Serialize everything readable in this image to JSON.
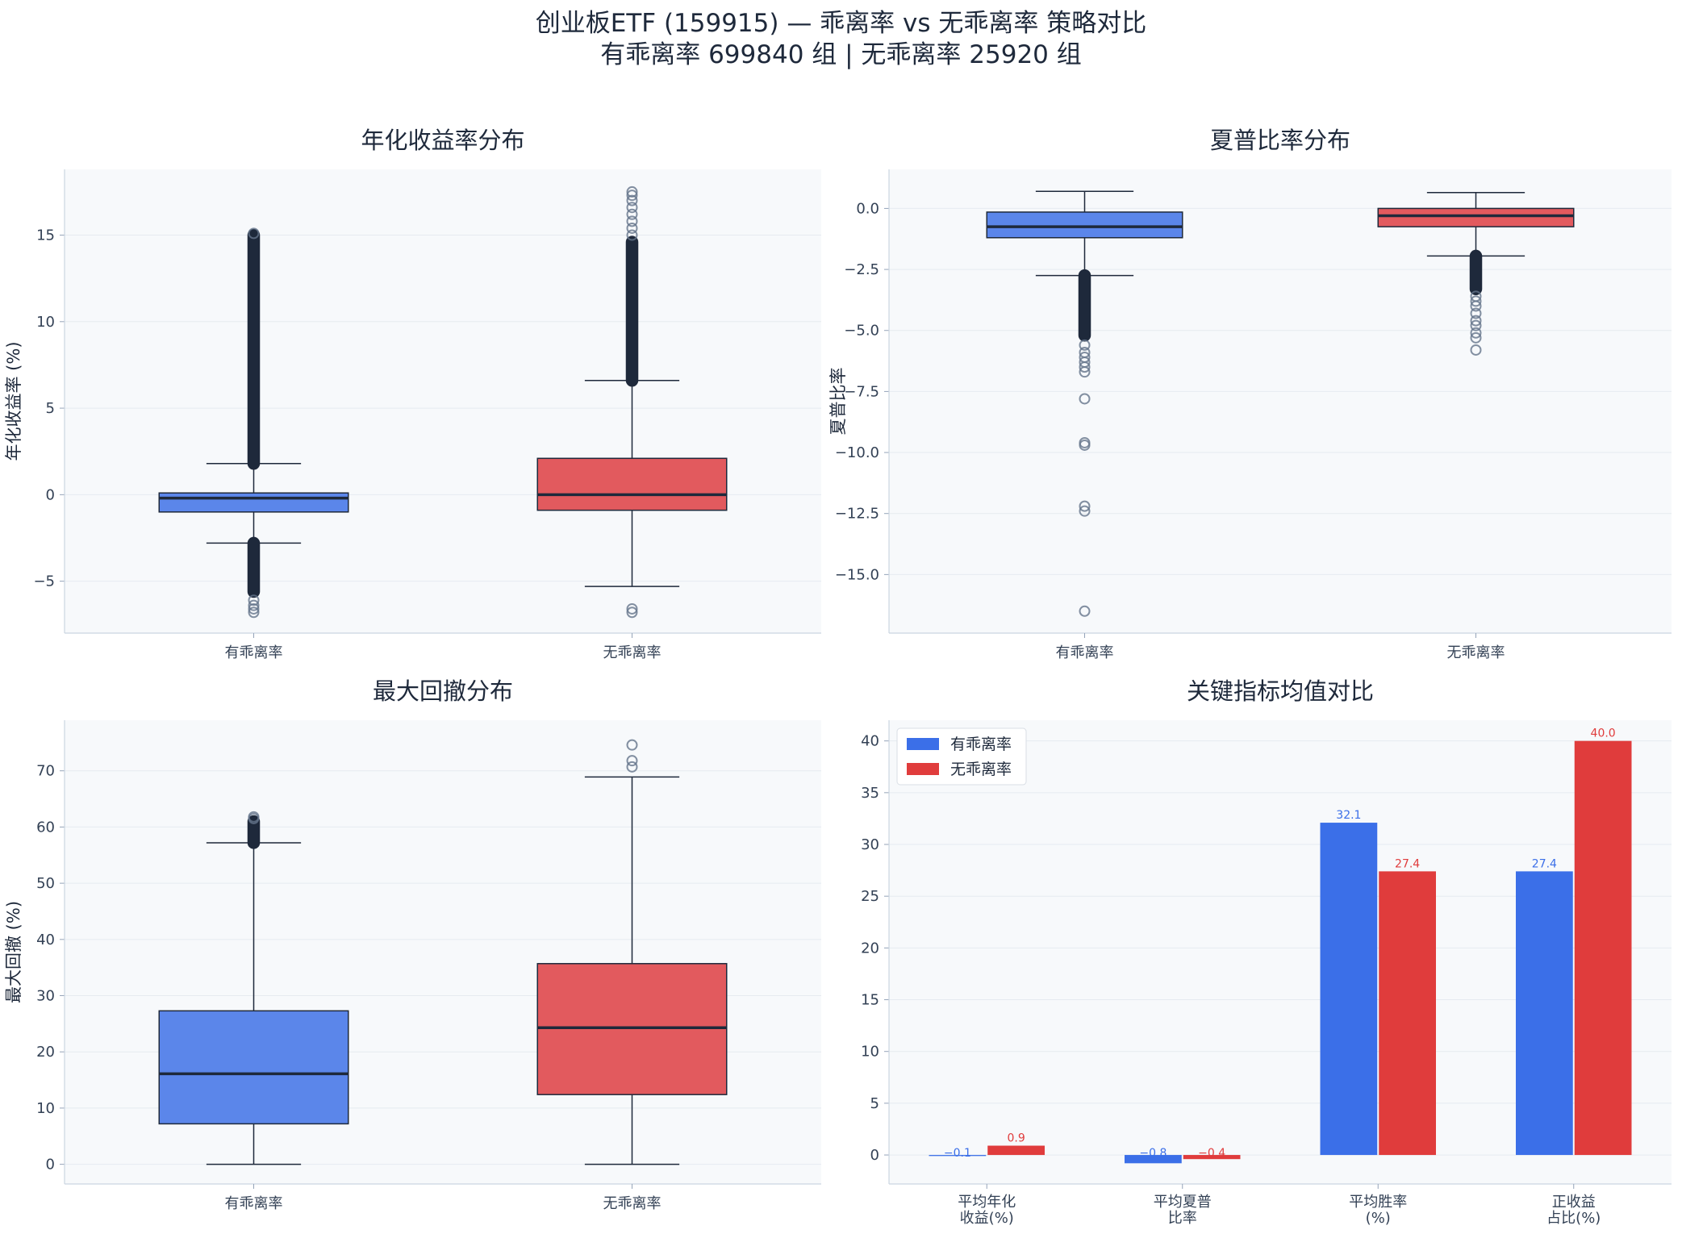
{
  "figure": {
    "title_line1": "创业板ETF (159915) — 乖离率 vs 无乖离率 策略对比",
    "title_line2": "有乖离率 699840 组  |  无乖离率 25920 组"
  },
  "colors": {
    "with_bias": "#3b6fe8",
    "no_bias": "#e03c3c",
    "box_edge": "#1e293b",
    "panel_bg": "#f7f9fb"
  },
  "chart_data": [
    {
      "type": "box",
      "title": "年化收益率分布",
      "ylabel": "年化收益率 (%)",
      "categories": [
        "有乖离率",
        "无乖离率"
      ],
      "ylim": [
        -8,
        18.8
      ],
      "yticks": [
        -5,
        0,
        5,
        10,
        15
      ],
      "grid": true,
      "boxes": [
        {
          "name": "有乖离率",
          "whisker_low": -2.8,
          "q1": -1.0,
          "median": -0.2,
          "q3": 0.1,
          "whisker_high": 1.8,
          "outlier_ranges": [
            [
              1.8,
              15.0
            ],
            [
              -5.6,
              -2.8
            ]
          ],
          "outliers": [
            15.1,
            -6.1,
            -6.4,
            -6.6,
            -6.8
          ]
        },
        {
          "name": "无乖离率",
          "whisker_low": -5.3,
          "q1": -0.9,
          "median": 0.0,
          "q3": 2.1,
          "whisker_high": 6.6,
          "outlier_ranges": [
            [
              6.6,
              14.6
            ]
          ],
          "outliers": [
            15.0,
            15.4,
            15.8,
            16.2,
            16.6,
            17.0,
            17.3,
            17.5,
            -6.6,
            -6.8
          ]
        }
      ]
    },
    {
      "type": "box",
      "title": "夏普比率分布",
      "ylabel": "夏普比率",
      "categories": [
        "有乖离率",
        "无乖离率"
      ],
      "ylim": [
        -17.4,
        1.6
      ],
      "yticks": [
        0.0,
        -2.5,
        -5.0,
        -7.5,
        -10.0,
        -12.5,
        -15.0
      ],
      "ytick_labels": [
        "0.0",
        "−2.5",
        "−5.0",
        "−7.5",
        "−10.0",
        "−12.5",
        "−15.0"
      ],
      "grid": true,
      "boxes": [
        {
          "name": "有乖离率",
          "whisker_low": -2.75,
          "q1": -1.2,
          "median": -0.75,
          "q3": -0.15,
          "whisker_high": 0.7,
          "outlier_ranges": [
            [
              -5.2,
              -2.75
            ]
          ],
          "outliers": [
            -5.6,
            -5.9,
            -6.1,
            -6.3,
            -6.5,
            -6.7,
            -7.8,
            -9.6,
            -9.7,
            -12.2,
            -12.4,
            -16.5
          ]
        },
        {
          "name": "无乖离率",
          "whisker_low": -1.95,
          "q1": -0.75,
          "median": -0.3,
          "q3": 0.0,
          "whisker_high": 0.65,
          "outlier_ranges": [
            [
              -3.3,
              -1.95
            ]
          ],
          "outliers": [
            -3.6,
            -3.8,
            -4.0,
            -4.3,
            -4.6,
            -4.8,
            -5.1,
            -5.3,
            -5.8
          ]
        }
      ]
    },
    {
      "type": "box",
      "title": "最大回撤分布",
      "ylabel": "最大回撤 (%)",
      "categories": [
        "有乖离率",
        "无乖离率"
      ],
      "ylim": [
        -3.5,
        79
      ],
      "yticks": [
        0,
        10,
        20,
        30,
        40,
        50,
        60,
        70
      ],
      "grid": true,
      "boxes": [
        {
          "name": "有乖离率",
          "whisker_low": 0.0,
          "q1": 7.2,
          "median": 16.1,
          "q3": 27.3,
          "whisker_high": 57.2,
          "outlier_ranges": [
            [
              57.2,
              61.0
            ]
          ],
          "outliers": [
            61.5,
            61.8
          ]
        },
        {
          "name": "无乖离率",
          "whisker_low": 0.0,
          "q1": 12.4,
          "median": 24.3,
          "q3": 35.7,
          "whisker_high": 68.9,
          "outlier_ranges": [],
          "outliers": [
            70.7,
            71.8,
            74.6
          ]
        }
      ]
    },
    {
      "type": "bar",
      "title": "关键指标均值对比",
      "categories": [
        "平均年化\n收益(%)",
        "平均夏普\n比率",
        "平均胜率\n(%)",
        "正收益\n占比(%)"
      ],
      "ylim": [
        -2.8,
        42.0
      ],
      "yticks": [
        0,
        5,
        10,
        15,
        20,
        25,
        30,
        35,
        40
      ],
      "grid": true,
      "legend_position": "upper-left",
      "series": [
        {
          "name": "有乖离率",
          "values": [
            -0.1,
            -0.8,
            32.1,
            27.4
          ],
          "labels": [
            "−0.1",
            "−0.8",
            "32.1",
            "27.4"
          ]
        },
        {
          "name": "无乖离率",
          "values": [
            0.9,
            -0.4,
            27.4,
            40.0
          ],
          "labels": [
            "0.9",
            "−0.4",
            "27.4",
            "40.0"
          ]
        }
      ]
    }
  ]
}
